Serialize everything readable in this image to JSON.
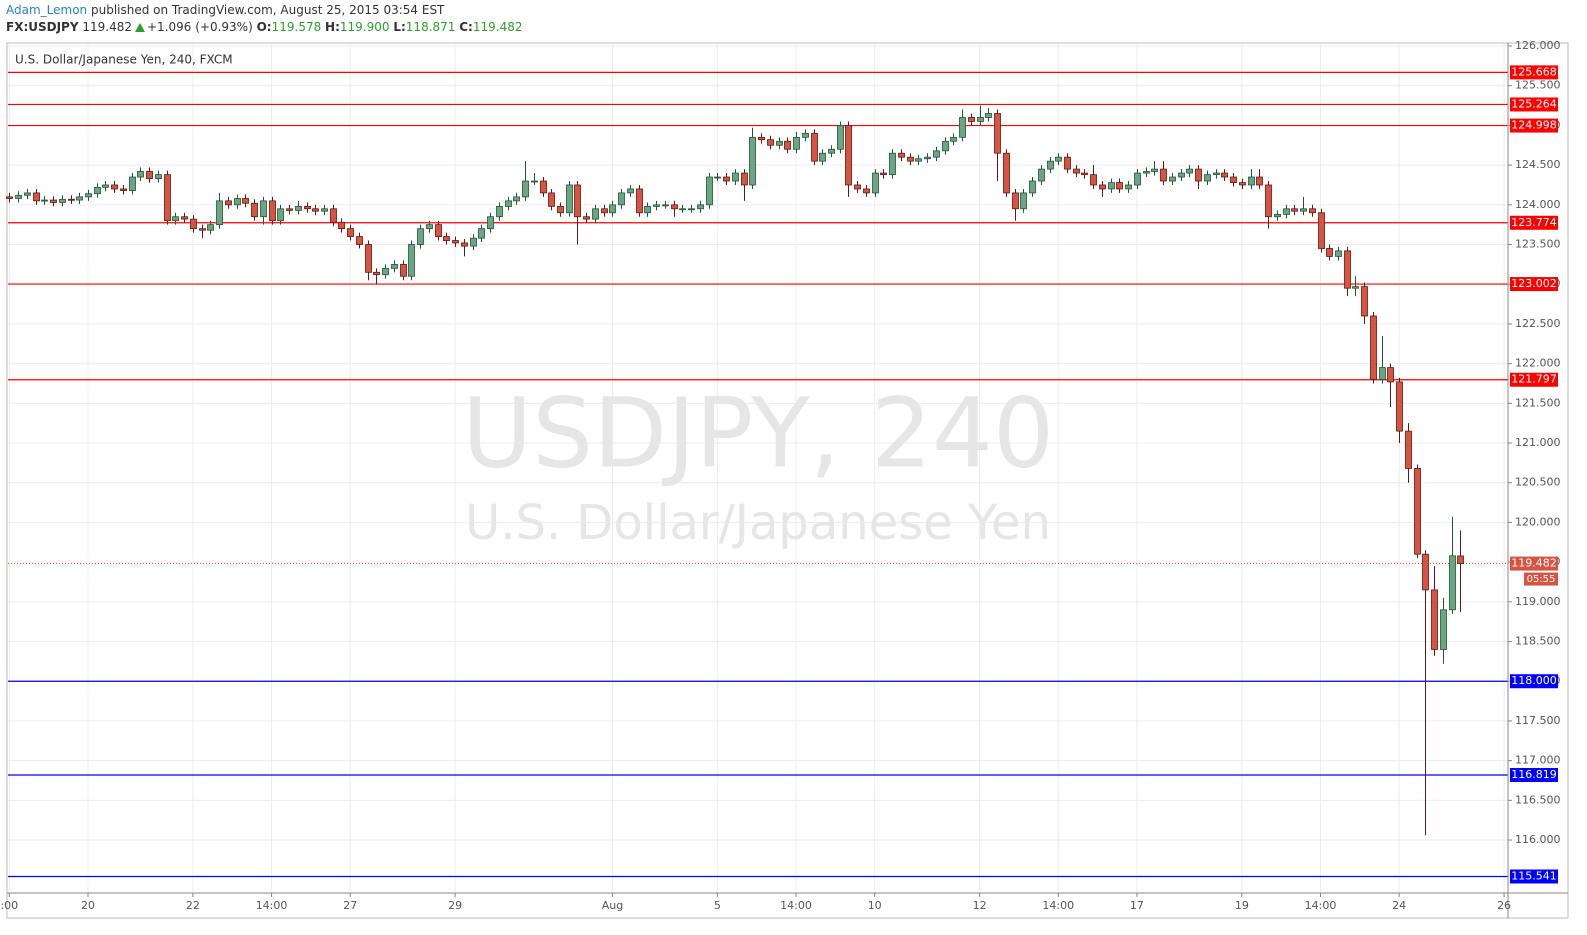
{
  "header": {
    "author": "Adam_Lemon",
    "published": "published on TradingView.com, August 25, 2015 03:54 EST",
    "symbol": "FX:USDJPY",
    "last": "119.482",
    "change": "+1.096 (+0.93%)",
    "quote": [
      {
        "label": "O:",
        "value": "119.578"
      },
      {
        "label": "H:",
        "value": "119.900"
      },
      {
        "label": "L:",
        "value": "118.871"
      },
      {
        "label": "C:",
        "value": "119.482"
      }
    ]
  },
  "chart_data": {
    "type": "candlestick",
    "legend": "U.S. Dollar/Japanese Yen, 240, FXCM",
    "watermark": "USDJPY, 240",
    "watermark_subtitle": "U.S. Dollar/Japanese Yen",
    "up_color": "#6ba583",
    "down_color": "#d75442",
    "grid": true,
    "xlim": [
      -0.15,
      171.45
    ],
    "xticks": [
      {
        "value": 0,
        "label": ":00"
      },
      {
        "value": 9,
        "label": "20"
      },
      {
        "value": 21,
        "label": "22"
      },
      {
        "value": 30,
        "label": "14:00"
      },
      {
        "value": 39,
        "label": "27"
      },
      {
        "value": 51,
        "label": "29"
      },
      {
        "value": 69,
        "label": "Aug"
      },
      {
        "value": 81,
        "label": "5"
      },
      {
        "value": 90,
        "label": "14:00"
      },
      {
        "value": 99,
        "label": "10"
      },
      {
        "value": 111,
        "label": "12"
      },
      {
        "value": 120,
        "label": "14:00"
      },
      {
        "value": 129,
        "label": "17"
      },
      {
        "value": 141,
        "label": "19"
      },
      {
        "value": 150,
        "label": "14:00"
      },
      {
        "value": 159,
        "label": "24"
      },
      {
        "value": 171,
        "label": "26"
      }
    ],
    "ylim": [
      115.333,
      126.038
    ],
    "yticks": [
      {
        "value": 116,
        "label": "116.000"
      },
      {
        "value": 116.5,
        "label": "116.500"
      },
      {
        "value": 117,
        "label": "117.000"
      },
      {
        "value": 117.5,
        "label": "117.500"
      },
      {
        "value": 118,
        "label": "118.000"
      },
      {
        "value": 118.5,
        "label": "118.500"
      },
      {
        "value": 119,
        "label": "119.000"
      },
      {
        "value": 119.5,
        "label": "119.500"
      },
      {
        "value": 120,
        "label": "120.000"
      },
      {
        "value": 120.5,
        "label": "120.500"
      },
      {
        "value": 121,
        "label": "121.000"
      },
      {
        "value": 121.5,
        "label": "121.500"
      },
      {
        "value": 122,
        "label": "122.000"
      },
      {
        "value": 122.5,
        "label": "122.500"
      },
      {
        "value": 123,
        "label": "123.000"
      },
      {
        "value": 123.5,
        "label": "123.500"
      },
      {
        "value": 124,
        "label": "124.000"
      },
      {
        "value": 124.5,
        "label": "124.500"
      },
      {
        "value": 125,
        "label": "125.000"
      },
      {
        "value": 125.5,
        "label": "125.500"
      },
      {
        "value": 126,
        "label": "126.000"
      }
    ],
    "hlines": [
      {
        "value": 125.668,
        "color": "#ff0000"
      },
      {
        "value": 125.264,
        "color": "#ff0000"
      },
      {
        "value": 124.998,
        "color": "#ff0000"
      },
      {
        "value": 123.774,
        "color": "#ff0000"
      },
      {
        "value": 123.002,
        "color": "#ff0000"
      },
      {
        "value": 121.797,
        "color": "#ff0000"
      },
      {
        "value": 118,
        "label": "118.000",
        "color": "#0000ff"
      },
      {
        "value": 116.819,
        "color": "#0000ff"
      },
      {
        "value": 115.541,
        "color": "#0000ff"
      }
    ],
    "last_price": {
      "value": 119.482,
      "countdown": "05:55",
      "color": "#d75442"
    },
    "ohlc": [
      [
        124.1,
        124.15,
        124.03,
        124.08
      ],
      [
        124.08,
        124.17,
        124.03,
        124.12
      ],
      [
        124.12,
        124.2,
        124.07,
        124.15
      ],
      [
        124.15,
        124.2,
        124.0,
        124.05
      ],
      [
        124.05,
        124.11,
        124.0,
        124.06
      ],
      [
        124.06,
        124.11,
        123.98,
        124.03
      ],
      [
        124.03,
        124.12,
        123.98,
        124.07
      ],
      [
        124.07,
        124.12,
        124.01,
        124.06
      ],
      [
        124.06,
        124.15,
        124.01,
        124.1
      ],
      [
        124.1,
        124.19,
        124.05,
        124.14
      ],
      [
        124.14,
        124.27,
        124.09,
        124.22
      ],
      [
        124.22,
        124.3,
        124.17,
        124.25
      ],
      [
        124.25,
        124.3,
        124.15,
        124.2
      ],
      [
        124.2,
        124.25,
        124.13,
        124.18
      ],
      [
        124.18,
        124.4,
        124.13,
        124.35
      ],
      [
        124.35,
        124.47,
        124.3,
        124.42
      ],
      [
        124.42,
        124.47,
        124.28,
        124.33
      ],
      [
        124.33,
        124.43,
        124.28,
        124.38
      ],
      [
        124.38,
        124.43,
        123.75,
        123.8
      ],
      [
        123.8,
        123.9,
        123.75,
        123.85
      ],
      [
        123.85,
        123.9,
        123.77,
        123.82
      ],
      [
        123.82,
        123.87,
        123.65,
        123.7
      ],
      [
        123.7,
        123.75,
        123.58,
        123.68
      ],
      [
        123.68,
        123.8,
        123.63,
        123.75
      ],
      [
        123.75,
        124.15,
        123.7,
        124.05
      ],
      [
        124.05,
        124.1,
        123.95,
        124.0
      ],
      [
        124.0,
        124.13,
        123.95,
        124.08
      ],
      [
        124.08,
        124.13,
        123.97,
        124.02
      ],
      [
        124.02,
        124.07,
        123.8,
        123.85
      ],
      [
        123.85,
        124.1,
        123.75,
        124.05
      ],
      [
        124.05,
        124.1,
        123.75,
        123.8
      ],
      [
        123.8,
        124.0,
        123.75,
        123.95
      ],
      [
        123.95,
        124.0,
        123.88,
        123.93
      ],
      [
        123.93,
        124.05,
        123.88,
        123.98
      ],
      [
        123.98,
        124.03,
        123.9,
        123.95
      ],
      [
        123.95,
        124.0,
        123.87,
        123.92
      ],
      [
        123.92,
        124.0,
        123.87,
        123.95
      ],
      [
        123.95,
        124.0,
        123.73,
        123.78
      ],
      [
        123.78,
        123.83,
        123.65,
        123.7
      ],
      [
        123.7,
        123.75,
        123.55,
        123.6
      ],
      [
        123.6,
        123.65,
        123.45,
        123.5
      ],
      [
        123.5,
        123.55,
        123.05,
        123.15
      ],
      [
        123.15,
        123.2,
        123.0,
        123.12
      ],
      [
        123.12,
        123.25,
        123.07,
        123.2
      ],
      [
        123.2,
        123.3,
        123.15,
        123.25
      ],
      [
        123.25,
        123.3,
        123.05,
        123.1
      ],
      [
        123.1,
        123.55,
        123.05,
        123.5
      ],
      [
        123.5,
        123.75,
        123.45,
        123.7
      ],
      [
        123.7,
        123.8,
        123.65,
        123.75
      ],
      [
        123.75,
        123.8,
        123.55,
        123.6
      ],
      [
        123.6,
        123.65,
        123.5,
        123.55
      ],
      [
        123.55,
        123.6,
        123.47,
        123.52
      ],
      [
        123.52,
        123.57,
        123.35,
        123.48
      ],
      [
        123.48,
        123.63,
        123.43,
        123.58
      ],
      [
        123.58,
        123.75,
        123.53,
        123.7
      ],
      [
        123.7,
        123.9,
        123.65,
        123.85
      ],
      [
        123.85,
        124.03,
        123.8,
        123.98
      ],
      [
        123.98,
        124.1,
        123.93,
        124.05
      ],
      [
        124.05,
        124.15,
        124.0,
        124.1
      ],
      [
        124.1,
        124.55,
        124.05,
        124.3
      ],
      [
        124.3,
        124.4,
        124.25,
        124.3
      ],
      [
        124.3,
        124.35,
        124.1,
        124.15
      ],
      [
        124.15,
        124.2,
        123.93,
        123.98
      ],
      [
        123.98,
        124.03,
        123.85,
        123.9
      ],
      [
        123.9,
        124.3,
        123.85,
        124.25
      ],
      [
        124.25,
        124.3,
        123.5,
        123.85
      ],
      [
        123.85,
        123.9,
        123.77,
        123.82
      ],
      [
        123.82,
        124.0,
        123.77,
        123.95
      ],
      [
        123.95,
        124.0,
        123.85,
        123.9
      ],
      [
        123.9,
        124.05,
        123.85,
        124.0
      ],
      [
        124.0,
        124.2,
        123.95,
        124.15
      ],
      [
        124.15,
        124.25,
        124.1,
        124.2
      ],
      [
        124.2,
        124.25,
        123.85,
        123.9
      ],
      [
        123.9,
        124.03,
        123.85,
        123.98
      ],
      [
        123.98,
        124.05,
        123.93,
        124.0
      ],
      [
        124.0,
        124.05,
        123.95,
        124.0
      ],
      [
        124.0,
        124.05,
        123.85,
        123.95
      ],
      [
        123.95,
        124.0,
        123.9,
        123.95
      ],
      [
        123.95,
        124.0,
        123.9,
        123.95
      ],
      [
        123.95,
        124.05,
        123.9,
        124.0
      ],
      [
        124.0,
        124.4,
        123.95,
        124.35
      ],
      [
        124.35,
        124.4,
        124.3,
        124.35
      ],
      [
        124.35,
        124.4,
        124.25,
        124.3
      ],
      [
        124.3,
        124.45,
        124.25,
        124.4
      ],
      [
        124.4,
        124.45,
        124.05,
        124.25
      ],
      [
        124.25,
        124.97,
        124.2,
        124.85
      ],
      [
        124.85,
        124.9,
        124.77,
        124.82
      ],
      [
        124.82,
        124.87,
        124.7,
        124.75
      ],
      [
        124.75,
        124.85,
        124.7,
        124.8
      ],
      [
        124.8,
        124.85,
        124.65,
        124.7
      ],
      [
        124.7,
        124.92,
        124.65,
        124.85
      ],
      [
        124.85,
        124.95,
        124.8,
        124.9
      ],
      [
        124.9,
        124.95,
        124.5,
        124.55
      ],
      [
        124.55,
        124.7,
        124.5,
        124.65
      ],
      [
        124.65,
        124.75,
        124.6,
        124.7
      ],
      [
        124.7,
        125.05,
        124.65,
        125.0
      ],
      [
        125.0,
        125.05,
        124.1,
        124.25
      ],
      [
        124.25,
        124.3,
        124.15,
        124.2
      ],
      [
        124.2,
        124.25,
        124.1,
        124.15
      ],
      [
        124.15,
        124.45,
        124.1,
        124.4
      ],
      [
        124.4,
        124.45,
        124.33,
        124.38
      ],
      [
        124.38,
        124.7,
        124.33,
        124.65
      ],
      [
        124.65,
        124.7,
        124.55,
        124.6
      ],
      [
        124.6,
        124.65,
        124.5,
        124.55
      ],
      [
        124.55,
        124.63,
        124.5,
        124.58
      ],
      [
        124.58,
        124.65,
        124.53,
        124.6
      ],
      [
        124.6,
        124.73,
        124.55,
        124.68
      ],
      [
        124.68,
        124.85,
        124.63,
        124.8
      ],
      [
        124.8,
        124.9,
        124.75,
        124.85
      ],
      [
        124.85,
        125.2,
        124.8,
        125.1
      ],
      [
        125.1,
        125.15,
        125.0,
        125.05
      ],
      [
        125.05,
        125.25,
        125.0,
        125.1
      ],
      [
        125.1,
        125.22,
        125.05,
        125.15
      ],
      [
        125.15,
        125.2,
        124.3,
        124.65
      ],
      [
        124.65,
        124.7,
        124.1,
        124.15
      ],
      [
        124.15,
        124.2,
        123.8,
        123.95
      ],
      [
        123.95,
        124.2,
        123.9,
        124.15
      ],
      [
        124.15,
        124.35,
        124.1,
        124.3
      ],
      [
        124.3,
        124.5,
        124.25,
        124.45
      ],
      [
        124.45,
        124.6,
        124.4,
        124.55
      ],
      [
        124.55,
        124.65,
        124.5,
        124.6
      ],
      [
        124.6,
        124.65,
        124.4,
        124.45
      ],
      [
        124.45,
        124.5,
        124.35,
        124.4
      ],
      [
        124.4,
        124.45,
        124.33,
        124.38
      ],
      [
        124.38,
        124.5,
        124.2,
        124.25
      ],
      [
        124.25,
        124.3,
        124.1,
        124.2
      ],
      [
        124.2,
        124.33,
        124.15,
        124.28
      ],
      [
        124.28,
        124.33,
        124.15,
        124.2
      ],
      [
        124.2,
        124.3,
        124.15,
        124.25
      ],
      [
        124.25,
        124.45,
        124.2,
        124.4
      ],
      [
        124.4,
        124.47,
        124.35,
        124.42
      ],
      [
        124.42,
        124.55,
        124.37,
        124.45
      ],
      [
        124.45,
        124.55,
        124.25,
        124.3
      ],
      [
        124.3,
        124.4,
        124.25,
        124.35
      ],
      [
        124.35,
        124.45,
        124.3,
        124.4
      ],
      [
        124.4,
        124.5,
        124.35,
        124.45
      ],
      [
        124.45,
        124.5,
        124.2,
        124.3
      ],
      [
        124.3,
        124.43,
        124.25,
        124.38
      ],
      [
        124.38,
        124.45,
        124.33,
        124.4
      ],
      [
        124.4,
        124.45,
        124.3,
        124.35
      ],
      [
        124.35,
        124.4,
        124.23,
        124.28
      ],
      [
        124.28,
        124.33,
        124.2,
        124.25
      ],
      [
        124.25,
        124.45,
        124.2,
        124.35
      ],
      [
        124.35,
        124.45,
        124.2,
        124.25
      ],
      [
        124.25,
        124.3,
        123.7,
        123.85
      ],
      [
        123.85,
        123.93,
        123.8,
        123.88
      ],
      [
        123.88,
        124.0,
        123.83,
        123.95
      ],
      [
        123.95,
        124.0,
        123.87,
        123.92
      ],
      [
        123.92,
        124.1,
        123.87,
        123.95
      ],
      [
        123.95,
        124.0,
        123.85,
        123.9
      ],
      [
        123.9,
        123.95,
        123.4,
        123.45
      ],
      [
        123.45,
        123.5,
        123.3,
        123.35
      ],
      [
        123.35,
        123.47,
        123.3,
        123.42
      ],
      [
        123.42,
        123.47,
        122.85,
        122.95
      ],
      [
        122.95,
        123.1,
        122.85,
        122.97
      ],
      [
        122.97,
        123.02,
        122.5,
        122.6
      ],
      [
        122.6,
        122.65,
        121.75,
        121.8
      ],
      [
        121.8,
        122.35,
        121.75,
        121.95
      ],
      [
        121.95,
        122.0,
        121.45,
        121.77
      ],
      [
        121.77,
        121.82,
        121.0,
        121.15
      ],
      [
        121.15,
        121.25,
        120.5,
        120.68
      ],
      [
        120.68,
        120.73,
        119.55,
        119.6
      ],
      [
        119.6,
        119.65,
        116.06,
        119.15
      ],
      [
        119.15,
        119.45,
        118.32,
        118.4
      ],
      [
        118.4,
        119.05,
        118.22,
        118.9
      ],
      [
        118.9,
        120.07,
        118.85,
        119.58
      ],
      [
        119.578,
        119.9,
        118.871,
        119.482
      ]
    ]
  }
}
